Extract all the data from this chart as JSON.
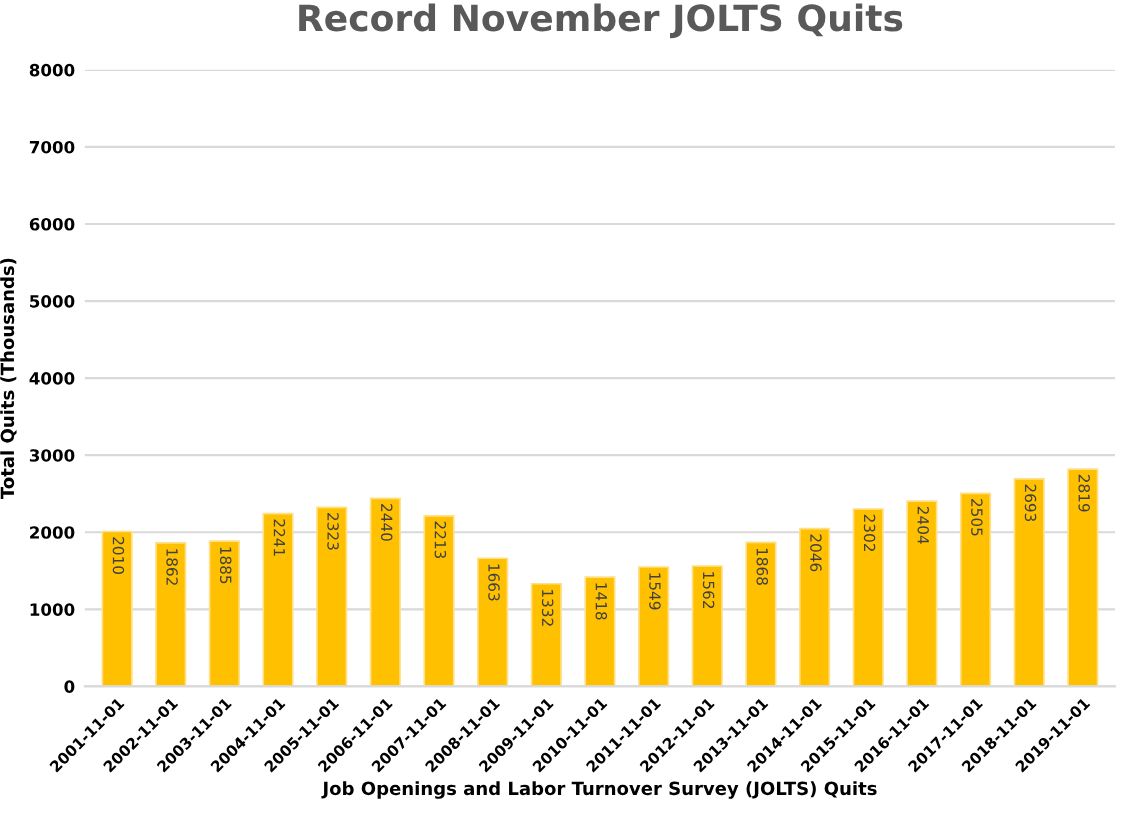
{
  "chart_data": {
    "type": "bar",
    "title": "Record November JOLTS Quits",
    "xlabel": "Job Openings and Labor Turnover Survey (JOLTS) Quits",
    "ylabel": "Total Quits (Thousands)",
    "categories": [
      "2001-11-01",
      "2002-11-01",
      "2003-11-01",
      "2004-11-01",
      "2005-11-01",
      "2006-11-01",
      "2007-11-01",
      "2008-11-01",
      "2009-11-01",
      "2010-11-01",
      "2011-11-01",
      "2012-11-01",
      "2013-11-01",
      "2014-11-01",
      "2015-11-01",
      "2016-11-01",
      "2017-11-01",
      "2018-11-01",
      "2019-11-01"
    ],
    "values": [
      2010,
      1862,
      1885,
      2241,
      2323,
      2440,
      2213,
      1663,
      1332,
      1418,
      1549,
      1562,
      1868,
      2046,
      2302,
      2404,
      2505,
      2693,
      2819
    ],
    "color": "#ffc000",
    "ylim": [
      0,
      8000
    ],
    "yticks": [
      0,
      1000,
      2000,
      3000,
      4000,
      5000,
      6000,
      7000,
      8000
    ],
    "grid": "y",
    "data_labels": true
  }
}
